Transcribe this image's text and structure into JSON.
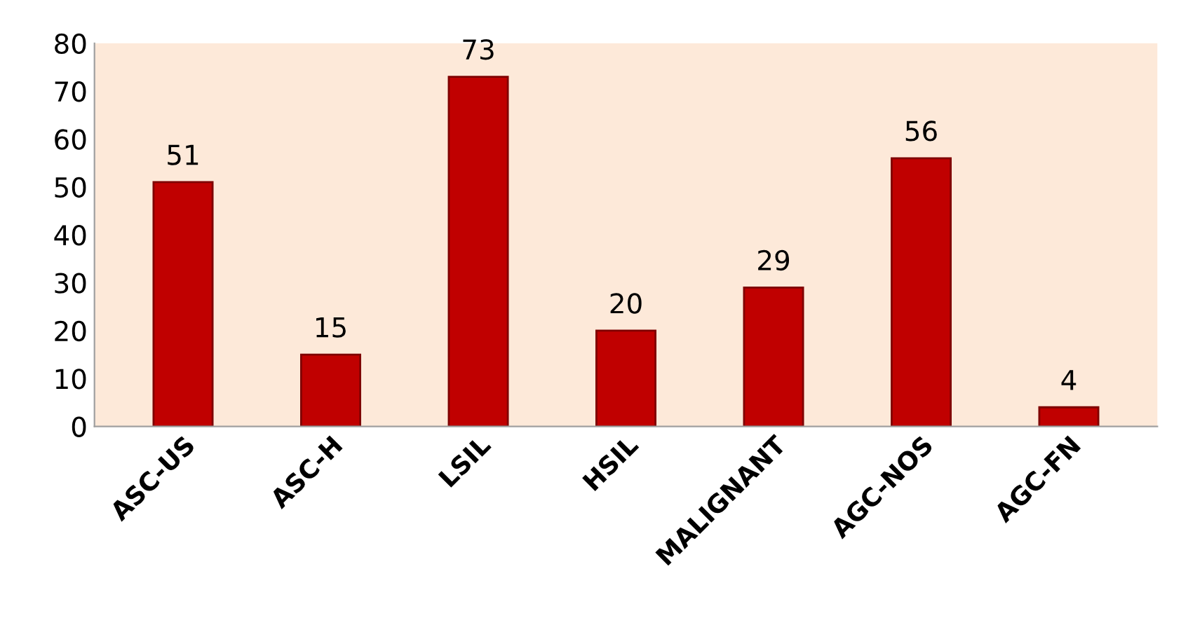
{
  "chart_data": {
    "type": "bar",
    "categories": [
      "ASC-US",
      "ASC-H",
      "LSIL",
      "HSIL",
      "MALIGNANT",
      "AGC-NOS",
      "AGC-FN"
    ],
    "values": [
      51,
      15,
      73,
      20,
      29,
      56,
      4
    ],
    "color": "#c00000",
    "ylim": [
      0,
      80
    ],
    "yticks": [
      0,
      10,
      20,
      30,
      40,
      50,
      60,
      70,
      80
    ],
    "data_labels": true,
    "grid": false,
    "legend": false
  }
}
